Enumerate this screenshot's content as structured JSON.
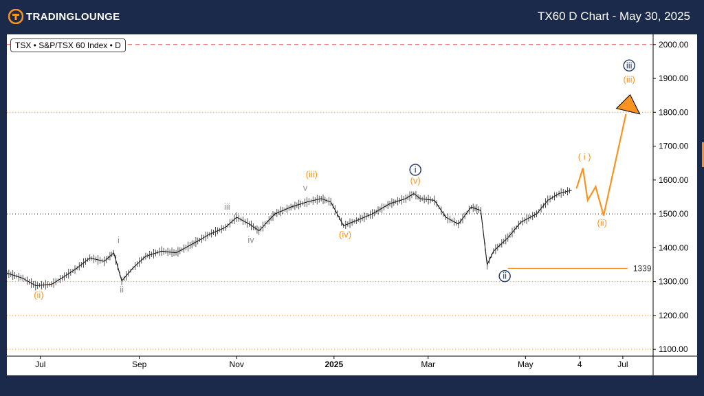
{
  "header": {
    "brand": "TradingLounge",
    "brand_parts": [
      "TRADING",
      "LOUNGE"
    ],
    "title": "TX60 D Chart - May 30, 2025"
  },
  "symbol": "TSX • S&P/TSX 60 Index • D",
  "colors": {
    "background": "#1b2a4a",
    "orange": "#f7931e",
    "navy": "#2b3f6b",
    "grey": "#8c8c8c",
    "resistance": "#e05050"
  },
  "chart_data": {
    "type": "line",
    "title": "TX60 D Chart - May 30, 2025",
    "ylim": [
      1080,
      2030
    ],
    "y_ticks": [
      1100,
      1200,
      1300,
      1400,
      1500,
      1600,
      1700,
      1800,
      1900,
      2000
    ],
    "y_tick_labels": [
      "1100.00",
      "1200.00",
      "1300.00",
      "1400.00",
      "1500.00",
      "1600.00",
      "1700.00",
      "1800.00",
      "1900.00",
      "2000.00"
    ],
    "x_ticks": [
      "Jul",
      "Sep",
      "Nov",
      "2025",
      "Mar",
      "May",
      "4",
      "Jul"
    ],
    "x_tick_dates": [
      "2024-07-01",
      "2024-09-01",
      "2024-11-01",
      "2025-01-01",
      "2025-03-01",
      "2025-05-01",
      "2025-06-04",
      "2025-07-01"
    ],
    "x_range": [
      "2024-06-10",
      "2025-07-20"
    ],
    "price_series": {
      "name": "TX60",
      "points": [
        [
          "2024-06-10",
          1325
        ],
        [
          "2024-06-20",
          1310
        ],
        [
          "2024-06-28",
          1288
        ],
        [
          "2024-07-08",
          1292
        ],
        [
          "2024-07-16",
          1315
        ],
        [
          "2024-07-24",
          1340
        ],
        [
          "2024-08-01",
          1370
        ],
        [
          "2024-08-10",
          1360
        ],
        [
          "2024-08-16",
          1385
        ],
        [
          "2024-08-21",
          1302
        ],
        [
          "2024-08-28",
          1340
        ],
        [
          "2024-09-05",
          1375
        ],
        [
          "2024-09-15",
          1390
        ],
        [
          "2024-09-24",
          1385
        ],
        [
          "2024-10-04",
          1410
        ],
        [
          "2024-10-15",
          1440
        ],
        [
          "2024-10-25",
          1460
        ],
        [
          "2024-11-01",
          1490
        ],
        [
          "2024-11-09",
          1470
        ],
        [
          "2024-11-15",
          1450
        ],
        [
          "2024-11-25",
          1500
        ],
        [
          "2024-12-05",
          1520
        ],
        [
          "2024-12-15",
          1535
        ],
        [
          "2024-12-24",
          1545
        ],
        [
          "2024-12-30",
          1535
        ],
        [
          "2025-01-07",
          1465
        ],
        [
          "2025-01-15",
          1480
        ],
        [
          "2025-01-25",
          1500
        ],
        [
          "2025-02-05",
          1530
        ],
        [
          "2025-02-15",
          1545
        ],
        [
          "2025-02-20",
          1560
        ],
        [
          "2025-02-24",
          1545
        ],
        [
          "2025-03-05",
          1540
        ],
        [
          "2025-03-12",
          1490
        ],
        [
          "2025-03-20",
          1470
        ],
        [
          "2025-03-28",
          1520
        ],
        [
          "2025-04-03",
          1510
        ],
        [
          "2025-04-07",
          1350
        ],
        [
          "2025-04-11",
          1390
        ],
        [
          "2025-04-20",
          1430
        ],
        [
          "2025-04-28",
          1475
        ],
        [
          "2025-05-08",
          1500
        ],
        [
          "2025-05-15",
          1540
        ],
        [
          "2025-05-22",
          1560
        ],
        [
          "2025-05-30",
          1570
        ]
      ]
    },
    "projection": {
      "name": "Projected path",
      "points": [
        [
          "2025-06-02",
          1575
        ],
        [
          "2025-06-06",
          1635
        ],
        [
          "2025-06-09",
          1540
        ],
        [
          "2025-06-14",
          1580
        ],
        [
          "2025-06-19",
          1495
        ],
        [
          "2025-07-03",
          1795
        ]
      ]
    },
    "horizontal_levels": [
      {
        "value": 2000,
        "style": "dashed",
        "color": "#e05050"
      },
      {
        "value": 1800,
        "style": "dotted",
        "color": "#f7931e"
      },
      {
        "value": 1500,
        "style": "dotted",
        "color": "#000000"
      },
      {
        "value": 1300,
        "style": "dotted",
        "color": "#f7931e"
      },
      {
        "value": 1200,
        "style": "dotted",
        "color": "#f7931e"
      },
      {
        "value": 1100,
        "style": "dotted",
        "color": "#f7931e"
      }
    ],
    "support_line": {
      "value": 1339,
      "label": "1339",
      "from": "2025-04-20",
      "to": "2025-07-04"
    },
    "wave_labels": [
      {
        "text": "(ii)",
        "date": "2024-06-30",
        "value": 1252,
        "color": "orange"
      },
      {
        "text": "i",
        "date": "2024-08-19",
        "value": 1414,
        "color": "grey"
      },
      {
        "text": "ii",
        "date": "2024-08-21",
        "value": 1268,
        "color": "grey"
      },
      {
        "text": "iii",
        "date": "2024-10-26",
        "value": 1512,
        "color": "grey"
      },
      {
        "text": "iv",
        "date": "2024-11-10",
        "value": 1415,
        "color": "grey"
      },
      {
        "text": "v",
        "date": "2024-12-14",
        "value": 1568,
        "color": "grey"
      },
      {
        "text": "(iii)",
        "date": "2024-12-18",
        "value": 1608,
        "color": "orange"
      },
      {
        "text": "(iv)",
        "date": "2025-01-08",
        "value": 1430,
        "color": "orange"
      },
      {
        "text": "i",
        "date": "2025-02-21",
        "value": 1622,
        "color": "navy",
        "circled": true
      },
      {
        "text": "(v)",
        "date": "2025-02-21",
        "value": 1590,
        "color": "orange"
      },
      {
        "text": "ii",
        "date": "2025-04-18",
        "value": 1308,
        "color": "navy",
        "circled": true
      },
      {
        "text": "( i )",
        "date": "2025-06-07",
        "value": 1660,
        "color": "orange"
      },
      {
        "text": "(ii)",
        "date": "2025-06-18",
        "value": 1465,
        "color": "orange"
      },
      {
        "text": "iii",
        "date": "2025-07-05",
        "value": 1930,
        "color": "navy",
        "circled": true
      },
      {
        "text": "(iii)",
        "date": "2025-07-05",
        "value": 1888,
        "color": "orange"
      }
    ]
  }
}
